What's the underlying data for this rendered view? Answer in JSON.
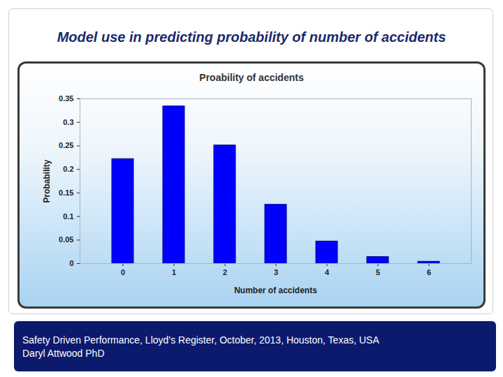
{
  "header": "Model use in predicting probability of number of accidents",
  "chart_data": {
    "type": "bar",
    "title": "Proability of accidents",
    "x_label": "Number of accidents",
    "y_label": "Probability",
    "categories": [
      "0",
      "1",
      "2",
      "3",
      "4",
      "5",
      "6"
    ],
    "values": [
      0.222,
      0.334,
      0.251,
      0.125,
      0.047,
      0.014,
      0.004
    ],
    "color": "#0000ff",
    "ylim": [
      0,
      0.35
    ],
    "yticks": [
      0,
      0.05,
      0.1,
      0.15,
      0.2,
      0.25,
      0.3,
      0.35
    ],
    "grid": false
  },
  "footer": [
    "Safety Driven Performance, Lloyd’s Register, October, 2013, Houston, Texas, USA",
    "Daryl Attwood PhD"
  ]
}
